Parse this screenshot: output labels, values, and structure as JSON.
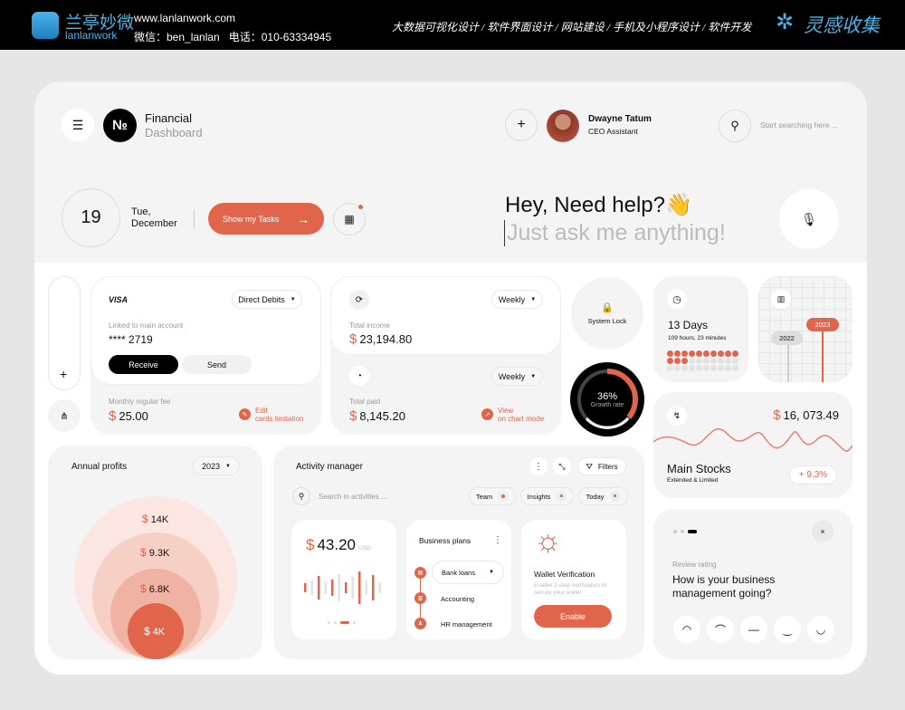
{
  "banner": {
    "logo_cn": "兰亭妙微",
    "logo_en": "lanlanwork",
    "url": "www.lanlanwork.com",
    "contact": "微信：ben_lanlan   电话：010-63334945",
    "services": "大数据可视化设计 / 软件界面设计 / 网站建设 / 手机及小程序设计 / 软件开发",
    "brand": "灵感收集"
  },
  "header": {
    "logo": "№",
    "title": "Financial",
    "subtitle": "Dashboard",
    "user_name": "Dwayne Tatum",
    "user_role": "CEO Assistant",
    "search_placeholder": "Start searching here ..."
  },
  "date": {
    "day": "19",
    "weekday": "Tue,",
    "month": "December",
    "tasks_button": "Show my Tasks"
  },
  "assistant": {
    "greeting": "Hey, Need help?👋",
    "prompt": "Just ask me anything!"
  },
  "visa": {
    "brand": "VISA",
    "dropdown": "Direct Debits",
    "linked_label": "Linked to main account",
    "card_number": "**** 2719",
    "receive": "Receive",
    "send": "Send",
    "fee_label": "Monthly regular fee",
    "fee": "25.00",
    "edit_line1": "Edit",
    "edit_line2": "cards limitation"
  },
  "income": {
    "period": "Weekly",
    "label": "Total income",
    "value": "23,194.80"
  },
  "paid": {
    "period": "Weekly",
    "label": "Total paid",
    "value": "8,145.20",
    "view_line1": "View",
    "view_line2": "on chart mode"
  },
  "lock": {
    "label": "System Lock"
  },
  "growth": {
    "value": "36%",
    "label": "Growth rate",
    "fraction": 0.36
  },
  "time": {
    "days": "13 Days",
    "detail": "109 hours, 23 minutes",
    "filled_dots": 13,
    "total_dots": 30
  },
  "years": {
    "a": "2022",
    "b": "2023"
  },
  "stocks": {
    "value": "16, 073.49",
    "title": "Main Stocks",
    "subtitle": "Extended & Limited",
    "change": "+ 9.3%"
  },
  "profits": {
    "title": "Annual profits",
    "year": "2023",
    "values": [
      "14K",
      "9.3K",
      "6.8K",
      "4K"
    ]
  },
  "activity": {
    "title": "Activity manager",
    "filters": "Filters",
    "search_placeholder": "Search in activities ...",
    "chips": [
      "Team",
      "Insights",
      "Today"
    ],
    "amount": "43.20",
    "currency": "USD",
    "plans_title": "Business plans",
    "plans": [
      "Bank loans",
      "Accounting",
      "HR management"
    ],
    "wallet_title": "Wallet Verification",
    "wallet_text": "Enable 2-step verification to secure your wallet.",
    "enable": "Enable"
  },
  "review": {
    "label": "Review rating",
    "question": "How is your business management going?"
  },
  "colors": {
    "accent": "#e0654a",
    "dark": "#000000"
  }
}
